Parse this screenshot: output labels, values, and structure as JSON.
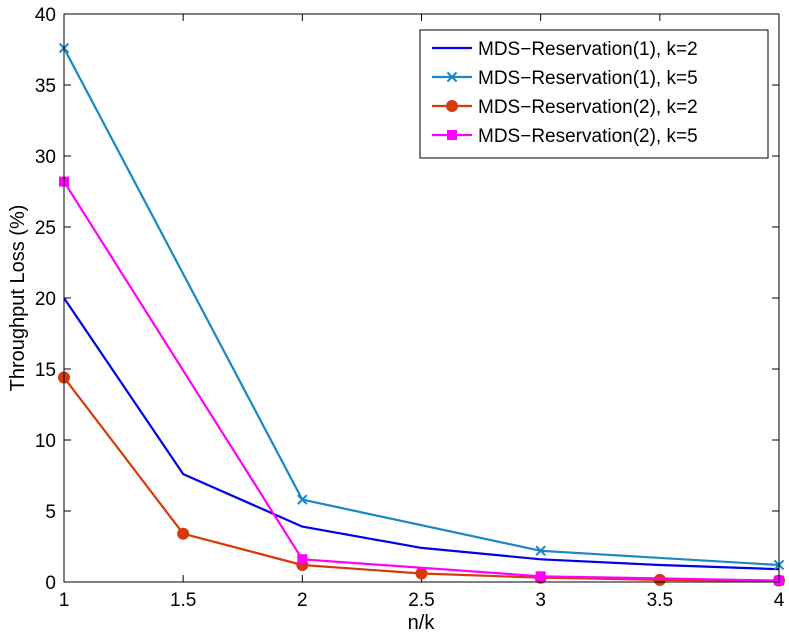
{
  "chart_data": {
    "type": "line",
    "title": "",
    "xlabel": "n/k",
    "ylabel": "Throughput Loss (%)",
    "xlim": [
      1,
      4
    ],
    "ylim": [
      0,
      40
    ],
    "xticks": [
      1,
      1.5,
      2,
      2.5,
      3,
      3.5,
      4
    ],
    "yticks": [
      0,
      5,
      10,
      15,
      20,
      25,
      30,
      35,
      40
    ],
    "xtick_labels": [
      "1",
      "1.5",
      "2",
      "2.5",
      "3",
      "3.5",
      "4"
    ],
    "ytick_labels": [
      "0",
      "5",
      "10",
      "15",
      "20",
      "25",
      "30",
      "35",
      "40"
    ],
    "grid": false,
    "legend_position": "top-right",
    "series": [
      {
        "name": "MDS−Reservation(1), k=2",
        "color": "#0000ee",
        "marker": "none",
        "x": [
          1,
          1.5,
          2,
          2.5,
          3,
          3.5,
          4
        ],
        "values": [
          20.0,
          7.6,
          3.9,
          2.4,
          1.6,
          1.2,
          0.9
        ]
      },
      {
        "name": "MDS−Reservation(1), k=5",
        "color": "#1a87c6",
        "marker": "x",
        "x": [
          1,
          2,
          3,
          4
        ],
        "values": [
          37.6,
          5.8,
          2.2,
          1.2
        ]
      },
      {
        "name": "MDS−Reservation(2), k=2",
        "color": "#d63a0a",
        "marker": "circle",
        "x": [
          1,
          1.5,
          2,
          2.5,
          3,
          3.5,
          4
        ],
        "values": [
          14.4,
          3.4,
          1.2,
          0.6,
          0.3,
          0.15,
          0.1
        ]
      },
      {
        "name": "MDS−Reservation(2), k=5",
        "color": "#ff00ff",
        "marker": "square",
        "x": [
          1,
          2,
          3,
          4
        ],
        "values": [
          28.2,
          1.6,
          0.4,
          0.1
        ]
      }
    ]
  }
}
